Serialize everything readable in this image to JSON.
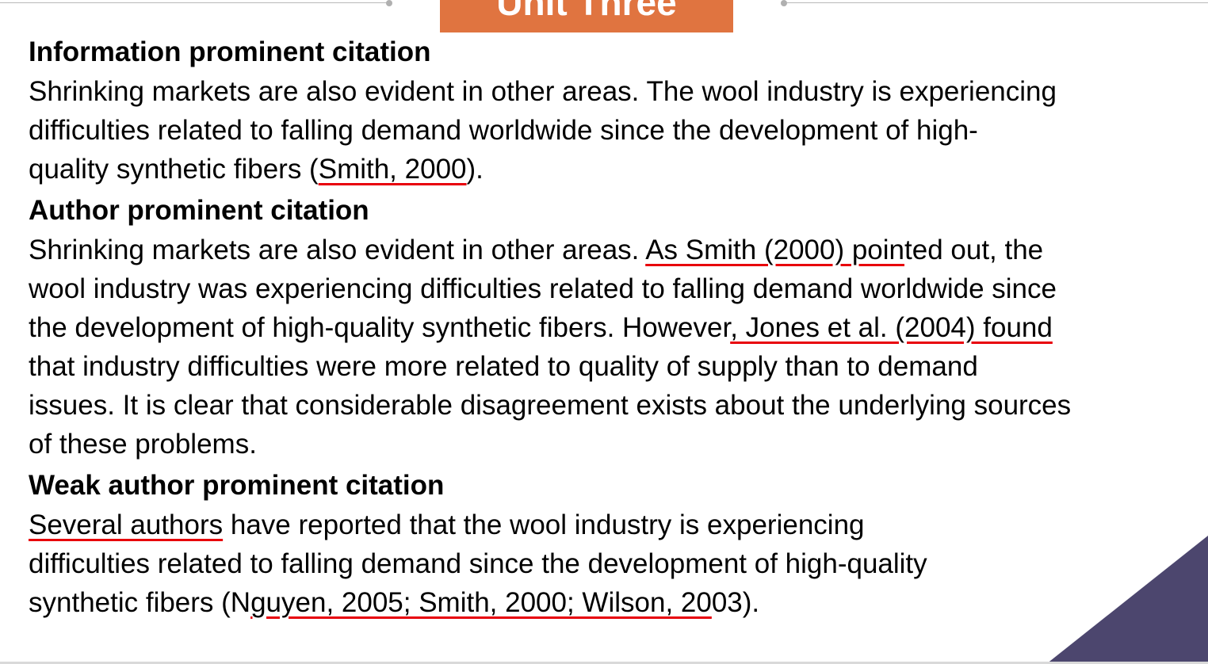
{
  "slide": {
    "title": "Unit Three",
    "colors": {
      "banner": "#E07440",
      "underline": "#E8000B",
      "corner": "#4C466E",
      "deco_line": "#B8B8B8"
    }
  },
  "sections": [
    {
      "heading": "Information prominent citation",
      "lines": [
        {
          "pre": "Shrinking markets are also evident in other areas. The wool industry is experiencing",
          "hl": "",
          "post": ""
        },
        {
          "pre": "difficulties related to falling demand worldwide since the development of high-",
          "hl": "",
          "post": ""
        },
        {
          "pre": "quality synthetic fibers (",
          "hl": "Smith, 2000",
          "post": ")."
        }
      ]
    },
    {
      "heading": "Author prominent citation",
      "lines": [
        {
          "pre": "Shrinking markets are also evident in other areas. ",
          "hl": "As Smith (2000) poin",
          "post": "ted out, the"
        },
        {
          "pre": "wool industry was experiencing difficulties related to falling demand worldwide since",
          "hl": "",
          "post": ""
        },
        {
          "pre": "the development of high-quality synthetic fibers. However",
          "hl": ", Jones et al. (2004) found",
          "post": ""
        },
        {
          "pre": "that industry difficulties were more related to quality of supply than to demand",
          "hl": "",
          "post": ""
        },
        {
          "pre": "issues. It is clear that considerable disagreement exists about the underlying sources",
          "hl": "",
          "post": ""
        },
        {
          "pre": "of these problems.",
          "hl": "",
          "post": ""
        }
      ]
    },
    {
      "heading": "Weak author prominent citation",
      "lines": [
        {
          "pre": "",
          "hl": "Several authors",
          "post": " have reported that the wool industry is experiencing"
        },
        {
          "pre": "difficulties related to falling demand since the development of high-quality",
          "hl": "",
          "post": ""
        },
        {
          "pre": "synthetic fibers (N",
          "hl": "guyen, 2005; Smith, 2000; Wilson, 20",
          "post": "03)."
        }
      ]
    }
  ]
}
